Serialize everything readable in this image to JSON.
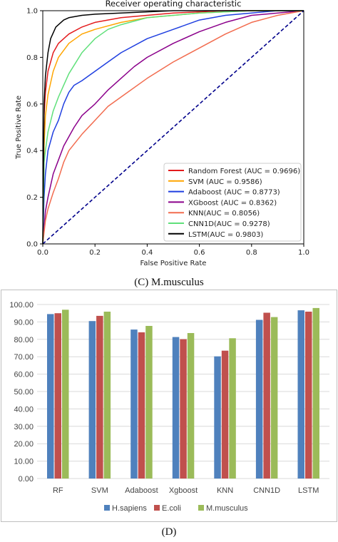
{
  "captions": {
    "c": "(C) M.musculus",
    "d": "(D)"
  },
  "chart_data": [
    {
      "type": "line",
      "title": "Receiver operating characteristic",
      "xlabel": "False Positive Rate",
      "ylabel": "True Positive Rate",
      "xlim": [
        0,
        1
      ],
      "ylim": [
        0,
        1
      ],
      "x_ticks": [
        "0.0",
        "0.2",
        "0.4",
        "0.6",
        "0.8",
        "1.0"
      ],
      "y_ticks": [
        "0.0",
        "0.2",
        "0.4",
        "0.6",
        "0.8",
        "1.0"
      ],
      "legend_position": "bottom-right",
      "grid": false,
      "series": [
        {
          "name": "Random Forest (AUC = 0.9696)",
          "color": "#e31a1c",
          "x": [
            0,
            0.005,
            0.01,
            0.02,
            0.04,
            0.06,
            0.1,
            0.15,
            0.2,
            0.3,
            0.4,
            0.5,
            0.6,
            0.7,
            0.8,
            0.9,
            1.0
          ],
          "y": [
            0,
            0.55,
            0.65,
            0.74,
            0.82,
            0.86,
            0.9,
            0.93,
            0.95,
            0.97,
            0.98,
            0.99,
            0.995,
            1.0,
            1.0,
            1.0,
            1.0
          ]
        },
        {
          "name": "SVM (AUC = 0.9586)",
          "color": "#ffa500",
          "x": [
            0,
            0.005,
            0.01,
            0.02,
            0.04,
            0.06,
            0.1,
            0.15,
            0.2,
            0.3,
            0.4,
            0.5,
            0.6,
            0.7,
            0.8,
            0.9,
            1.0
          ],
          "y": [
            0,
            0.42,
            0.55,
            0.64,
            0.74,
            0.8,
            0.86,
            0.9,
            0.92,
            0.95,
            0.97,
            0.98,
            0.99,
            0.995,
            1.0,
            1.0,
            1.0
          ]
        },
        {
          "name": "Adaboost (AUC = 0.8773)",
          "color": "#1f3fe0",
          "x": [
            0,
            0.005,
            0.01,
            0.02,
            0.04,
            0.06,
            0.08,
            0.1,
            0.12,
            0.15,
            0.2,
            0.25,
            0.3,
            0.4,
            0.5,
            0.6,
            0.7,
            0.8,
            0.9,
            1.0
          ],
          "y": [
            0,
            0.2,
            0.3,
            0.4,
            0.48,
            0.53,
            0.6,
            0.65,
            0.68,
            0.7,
            0.74,
            0.78,
            0.82,
            0.88,
            0.92,
            0.96,
            0.98,
            0.99,
            1.0,
            1.0
          ]
        },
        {
          "name": "XGboost (AUC = 0.8362)",
          "color": "#8b008b",
          "x": [
            0,
            0.01,
            0.02,
            0.04,
            0.06,
            0.08,
            0.1,
            0.12,
            0.15,
            0.2,
            0.25,
            0.3,
            0.35,
            0.4,
            0.5,
            0.6,
            0.7,
            0.8,
            0.9,
            1.0
          ],
          "y": [
            0,
            0.14,
            0.2,
            0.3,
            0.36,
            0.42,
            0.46,
            0.5,
            0.55,
            0.6,
            0.66,
            0.71,
            0.76,
            0.8,
            0.86,
            0.91,
            0.95,
            0.98,
            0.99,
            1.0
          ]
        },
        {
          "name": "KNN(AUC = 0.8056)",
          "color": "#f26c4f",
          "x": [
            0,
            0.01,
            0.02,
            0.04,
            0.06,
            0.08,
            0.1,
            0.15,
            0.2,
            0.25,
            0.3,
            0.4,
            0.5,
            0.6,
            0.7,
            0.8,
            0.9,
            1.0
          ],
          "y": [
            0,
            0.1,
            0.15,
            0.22,
            0.28,
            0.35,
            0.4,
            0.47,
            0.53,
            0.59,
            0.63,
            0.71,
            0.78,
            0.84,
            0.9,
            0.95,
            0.98,
            1.0
          ]
        },
        {
          "name": "CNN1D(AUC = 0.9278)",
          "color": "#5fe07a",
          "x": [
            0,
            0.005,
            0.01,
            0.02,
            0.04,
            0.06,
            0.08,
            0.1,
            0.15,
            0.2,
            0.25,
            0.3,
            0.4,
            0.5,
            0.6,
            0.7,
            0.8,
            0.9,
            1.0
          ],
          "y": [
            0,
            0.35,
            0.4,
            0.48,
            0.57,
            0.63,
            0.68,
            0.73,
            0.82,
            0.88,
            0.92,
            0.94,
            0.97,
            0.98,
            0.99,
            0.995,
            1.0,
            1.0,
            1.0
          ]
        },
        {
          "name": "LSTM(AUC = 0.9803)",
          "color": "#000000",
          "x": [
            0,
            0.005,
            0.01,
            0.02,
            0.03,
            0.05,
            0.08,
            0.1,
            0.15,
            0.2,
            0.3,
            0.4,
            0.5,
            0.6,
            0.7,
            0.8,
            1.0
          ],
          "y": [
            0,
            0.6,
            0.72,
            0.82,
            0.88,
            0.93,
            0.96,
            0.97,
            0.98,
            0.985,
            0.99,
            0.995,
            1.0,
            1.0,
            1.0,
            1.0,
            1.0
          ]
        },
        {
          "name": "",
          "color": "#00008b",
          "dashed": true,
          "x": [
            0,
            1
          ],
          "y": [
            0,
            1
          ]
        }
      ]
    },
    {
      "type": "bar",
      "categories": [
        "RF",
        "SVM",
        "Adaboost",
        "Xgboost",
        "KNN",
        "CNN1D",
        "LSTM"
      ],
      "ylim": [
        0,
        100
      ],
      "y_ticks": [
        "0.00",
        "10.00",
        "20.00",
        "30.00",
        "40.00",
        "50.00",
        "60.00",
        "70.00",
        "80.00",
        "90.00",
        "100.00"
      ],
      "grid": true,
      "legend_position": "bottom",
      "series": [
        {
          "name": "H.sapiens",
          "color": "#4f81bd",
          "values": [
            94.5,
            90.5,
            85.6,
            81.3,
            70.2,
            91.2,
            96.7
          ]
        },
        {
          "name": "E.coli",
          "color": "#c0504d",
          "values": [
            95.0,
            93.5,
            84.0,
            80.1,
            73.5,
            95.3,
            95.9
          ]
        },
        {
          "name": "M.musculus",
          "color": "#9bbb59",
          "values": [
            97.0,
            95.9,
            87.7,
            83.6,
            80.6,
            92.8,
            98.0
          ]
        }
      ]
    }
  ]
}
